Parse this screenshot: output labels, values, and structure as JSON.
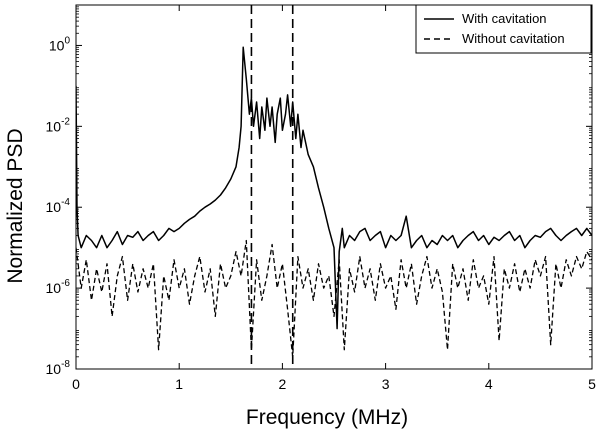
{
  "chart_data": {
    "type": "line",
    "xlabel": "Frequency (MHz)",
    "ylabel": "Normalized PSD",
    "xlim": [
      0,
      5
    ],
    "ylim": [
      1e-08,
      10
    ],
    "yscale": "log",
    "grid": false,
    "legend_position": "top-right",
    "x_ticks": [
      0,
      1,
      2,
      3,
      4,
      5
    ],
    "y_ticks": [
      {
        "value": 1e-08,
        "base": "10",
        "exp": "-8"
      },
      {
        "value": 1e-06,
        "base": "10",
        "exp": "-6"
      },
      {
        "value": 0.0001,
        "base": "10",
        "exp": "-4"
      },
      {
        "value": 0.01,
        "base": "10",
        "exp": "-2"
      },
      {
        "value": 1,
        "base": "10",
        "exp": "0"
      }
    ],
    "reference_lines_x": [
      1.7,
      2.1
    ],
    "series": [
      {
        "name": "With cavitation",
        "dash": "solid",
        "x": [
          0,
          0.01,
          0.02,
          0.05,
          0.1,
          0.15,
          0.2,
          0.25,
          0.3,
          0.35,
          0.4,
          0.45,
          0.5,
          0.55,
          0.6,
          0.65,
          0.7,
          0.75,
          0.8,
          0.85,
          0.9,
          0.95,
          1.0,
          1.05,
          1.1,
          1.15,
          1.2,
          1.25,
          1.3,
          1.35,
          1.4,
          1.45,
          1.5,
          1.55,
          1.58,
          1.6,
          1.62,
          1.65,
          1.68,
          1.7,
          1.72,
          1.75,
          1.78,
          1.8,
          1.83,
          1.85,
          1.88,
          1.9,
          1.93,
          1.95,
          1.98,
          2.0,
          2.03,
          2.05,
          2.08,
          2.1,
          2.13,
          2.15,
          2.18,
          2.2,
          2.25,
          2.3,
          2.35,
          2.4,
          2.45,
          2.5,
          2.53,
          2.55,
          2.58,
          2.6,
          2.65,
          2.7,
          2.75,
          2.8,
          2.85,
          2.9,
          2.95,
          3.0,
          3.05,
          3.1,
          3.15,
          3.2,
          3.25,
          3.3,
          3.35,
          3.4,
          3.45,
          3.5,
          3.55,
          3.6,
          3.65,
          3.7,
          3.75,
          3.8,
          3.85,
          3.9,
          3.95,
          4.0,
          4.05,
          4.1,
          4.15,
          4.2,
          4.25,
          4.3,
          4.35,
          4.4,
          4.45,
          4.5,
          4.55,
          4.6,
          4.65,
          4.7,
          4.75,
          4.8,
          4.85,
          4.9,
          4.95,
          5.0
        ],
        "y": [
          0.1,
          0.0001,
          2e-05,
          1e-05,
          2e-05,
          1.5e-05,
          1e-05,
          2e-05,
          1e-05,
          1.5e-05,
          2.5e-05,
          1.2e-05,
          2e-05,
          1.8e-05,
          2.5e-05,
          1.5e-05,
          2e-05,
          2.5e-05,
          1.5e-05,
          2e-05,
          3e-05,
          2.5e-05,
          3e-05,
          4e-05,
          5e-05,
          6e-05,
          8e-05,
          0.0001,
          0.00012,
          0.00015,
          0.0002,
          0.0003,
          0.0005,
          0.001,
          0.003,
          0.01,
          0.9,
          0.15,
          0.02,
          0.05,
          0.01,
          0.04,
          0.005,
          0.03,
          0.008,
          0.05,
          0.01,
          0.03,
          0.004,
          0.02,
          0.05,
          0.008,
          0.02,
          0.06,
          0.01,
          0.04,
          0.005,
          0.02,
          0.003,
          0.008,
          0.002,
          0.001,
          0.0003,
          0.0001,
          3e-05,
          1e-05,
          1e-07,
          8e-06,
          3e-05,
          1e-05,
          2e-05,
          1.5e-05,
          2.5e-05,
          3e-05,
          1.5e-05,
          2e-05,
          2.5e-05,
          1e-05,
          2e-05,
          1.5e-05,
          2e-05,
          6e-05,
          1e-05,
          1.5e-05,
          2e-05,
          1e-05,
          1.5e-05,
          1.2e-05,
          2e-05,
          1.5e-05,
          2e-05,
          1e-05,
          1.5e-05,
          2e-05,
          2.5e-05,
          1.5e-05,
          2e-05,
          1.2e-05,
          1.8e-05,
          1.5e-05,
          2e-05,
          2.5e-05,
          1.5e-05,
          2e-05,
          1e-05,
          1.5e-05,
          2e-05,
          1.8e-05,
          2.5e-05,
          3e-05,
          2e-05,
          1.5e-05,
          2e-05,
          2.5e-05,
          3e-05,
          2e-05,
          3e-05,
          2e-05
        ]
      },
      {
        "name": "Without cavitation",
        "dash": "dashed",
        "x": [
          0,
          0.05,
          0.1,
          0.15,
          0.2,
          0.25,
          0.3,
          0.35,
          0.4,
          0.45,
          0.5,
          0.55,
          0.6,
          0.65,
          0.7,
          0.75,
          0.8,
          0.85,
          0.9,
          0.95,
          1.0,
          1.05,
          1.1,
          1.15,
          1.2,
          1.25,
          1.3,
          1.35,
          1.4,
          1.45,
          1.5,
          1.55,
          1.6,
          1.65,
          1.7,
          1.75,
          1.8,
          1.85,
          1.9,
          1.95,
          2.0,
          2.05,
          2.1,
          2.15,
          2.2,
          2.25,
          2.3,
          2.35,
          2.4,
          2.45,
          2.5,
          2.55,
          2.6,
          2.65,
          2.7,
          2.75,
          2.8,
          2.85,
          2.9,
          2.95,
          3.0,
          3.05,
          3.1,
          3.15,
          3.2,
          3.25,
          3.3,
          3.35,
          3.4,
          3.45,
          3.5,
          3.55,
          3.6,
          3.65,
          3.7,
          3.75,
          3.8,
          3.85,
          3.9,
          3.95,
          4.0,
          4.05,
          4.1,
          4.15,
          4.2,
          4.25,
          4.3,
          4.35,
          4.4,
          4.45,
          4.5,
          4.55,
          4.6,
          4.65,
          4.7,
          4.75,
          4.8,
          4.85,
          4.9,
          4.95,
          5.0
        ],
        "y": [
          1e-05,
          1e-06,
          5e-06,
          5e-07,
          3e-06,
          8e-07,
          4e-06,
          2e-07,
          2e-06,
          6e-06,
          5e-07,
          4e-06,
          8e-07,
          3e-06,
          1e-06,
          4e-06,
          3e-08,
          2e-06,
          5e-07,
          5e-06,
          1e-06,
          3e-06,
          4e-07,
          2e-06,
          6e-06,
          8e-07,
          3e-06,
          2e-07,
          4e-06,
          1e-06,
          2e-06,
          8e-06,
          2e-06,
          1.5e-05,
          3e-08,
          5e-06,
          5e-07,
          2e-06,
          1.2e-05,
          1e-06,
          4e-06,
          3e-07,
          2e-08,
          6e-06,
          1e-06,
          3e-06,
          5e-07,
          4e-06,
          1e-06,
          2e-06,
          2e-07,
          5e-06,
          3e-08,
          3e-06,
          8e-07,
          6e-06,
          1e-06,
          3e-06,
          5e-07,
          4e-06,
          1e-06,
          2e-06,
          3e-07,
          5e-06,
          1e-06,
          4e-06,
          4e-07,
          2e-06,
          6e-06,
          1e-06,
          3e-06,
          8e-07,
          3e-08,
          4e-06,
          1e-06,
          3e-06,
          5e-07,
          5e-06,
          1e-06,
          2e-06,
          4e-07,
          6e-06,
          5e-08,
          3e-06,
          1e-06,
          4e-06,
          8e-07,
          3e-06,
          1e-06,
          5e-06,
          2e-06,
          6e-06,
          4e-08,
          4e-06,
          1e-06,
          5e-06,
          2e-06,
          6e-06,
          3e-06,
          8e-06,
          5e-06
        ]
      }
    ]
  }
}
